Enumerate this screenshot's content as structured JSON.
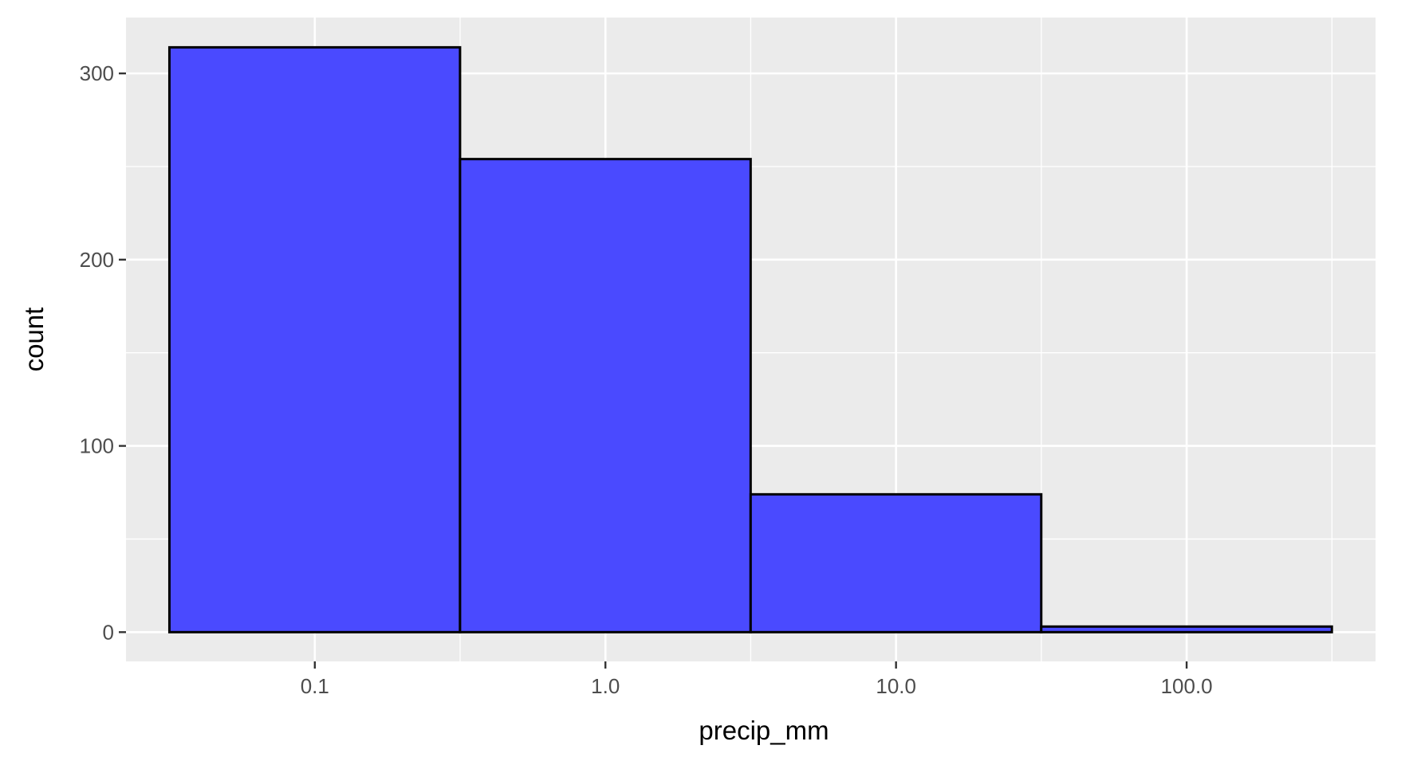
{
  "chart_data": {
    "type": "bar",
    "subtype": "histogram",
    "title": "",
    "xlabel": "precip_mm",
    "ylabel": "count",
    "x_scale": "log10",
    "x_ticks": [
      {
        "value": 0.1,
        "label": "0.1"
      },
      {
        "value": 1,
        "label": "1.0"
      },
      {
        "value": 10,
        "label": "10.0"
      },
      {
        "value": 100,
        "label": "100.0"
      }
    ],
    "y_ticks": [
      {
        "value": 0,
        "label": "0"
      },
      {
        "value": 100,
        "label": "100"
      },
      {
        "value": 200,
        "label": "200"
      },
      {
        "value": 300,
        "label": "300"
      }
    ],
    "xlim": [
      0.0224,
      446.7
    ],
    "ylim": [
      -15.7,
      330
    ],
    "bins": [
      {
        "x_start": 0.0316,
        "x_end": 0.316,
        "count": 314
      },
      {
        "x_start": 0.316,
        "x_end": 3.16,
        "count": 254
      },
      {
        "x_start": 3.16,
        "x_end": 31.6,
        "count": 74
      },
      {
        "x_start": 31.6,
        "x_end": 316,
        "count": 3
      }
    ],
    "grid": true,
    "legend": "none",
    "colors": {
      "bar_fill": "#4a4aff",
      "bar_outline": "#000000",
      "panel_background": "#ebebeb",
      "grid_line": "#ffffff"
    }
  }
}
